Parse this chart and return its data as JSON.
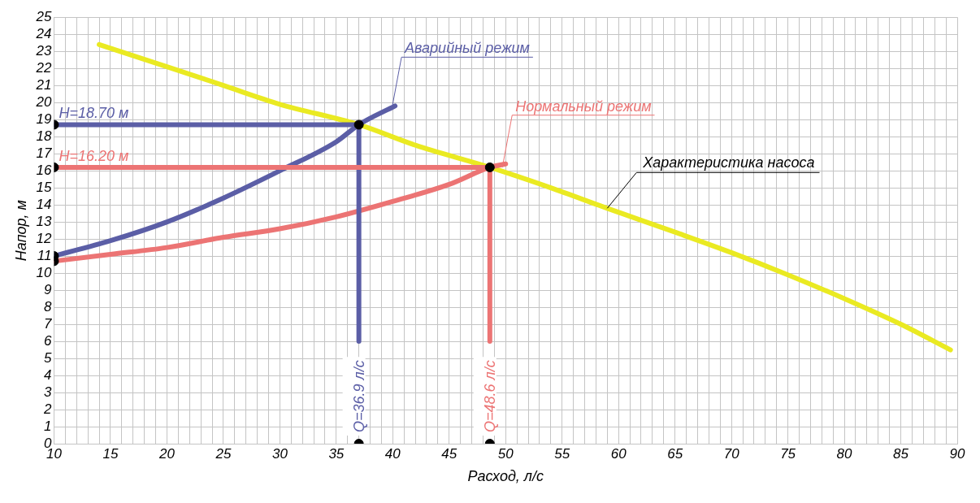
{
  "chart_data": {
    "type": "line",
    "xlabel": "Расход, л/с",
    "ylabel": "Напор, м",
    "xlim": [
      10,
      90
    ],
    "ylim": [
      0,
      25
    ],
    "xticks": [
      10,
      {
        "value": 11,
        "label": null
      },
      {
        "value": 12,
        "label": null
      },
      {
        "value": 13,
        "label": null
      },
      {
        "value": 14,
        "label": null
      },
      15,
      {
        "value": 16,
        "label": null
      },
      {
        "value": 17,
        "label": null
      },
      {
        "value": 18,
        "label": null
      },
      {
        "value": 19,
        "label": null
      },
      20,
      {
        "value": 21,
        "label": null
      },
      {
        "value": 22,
        "label": null
      },
      {
        "value": 23,
        "label": null
      },
      {
        "value": 24,
        "label": null
      },
      25,
      {
        "value": 26,
        "label": null
      },
      {
        "value": 27,
        "label": null
      },
      {
        "value": 28,
        "label": null
      },
      {
        "value": 29,
        "label": null
      },
      30,
      {
        "value": 31,
        "label": null
      },
      {
        "value": 32,
        "label": null
      },
      {
        "value": 33,
        "label": null
      },
      {
        "value": 34,
        "label": null
      },
      35,
      {
        "value": 36,
        "label": null
      },
      {
        "value": 37,
        "label": null
      },
      {
        "value": 38,
        "label": null
      },
      {
        "value": 39,
        "label": null
      },
      40,
      {
        "value": 41,
        "label": null
      },
      {
        "value": 42,
        "label": null
      },
      {
        "value": 43,
        "label": null
      },
      {
        "value": 44,
        "label": null
      },
      45,
      {
        "value": 46,
        "label": null
      },
      {
        "value": 47,
        "label": null
      },
      {
        "value": 48,
        "label": null
      },
      {
        "value": 49,
        "label": null
      },
      50,
      {
        "value": 51,
        "label": null
      },
      {
        "value": 52,
        "label": null
      },
      {
        "value": 53,
        "label": null
      },
      {
        "value": 54,
        "label": null
      },
      55,
      {
        "value": 56,
        "label": null
      },
      {
        "value": 57,
        "label": null
      },
      {
        "value": 58,
        "label": null
      },
      {
        "value": 59,
        "label": null
      },
      60,
      {
        "value": 61,
        "label": null
      },
      {
        "value": 62,
        "label": null
      },
      {
        "value": 63,
        "label": null
      },
      {
        "value": 64,
        "label": null
      },
      65,
      {
        "value": 66,
        "label": null
      },
      {
        "value": 67,
        "label": null
      },
      {
        "value": 68,
        "label": null
      },
      {
        "value": 69,
        "label": null
      },
      70,
      {
        "value": 71,
        "label": null
      },
      {
        "value": 72,
        "label": null
      },
      {
        "value": 73,
        "label": null
      },
      {
        "value": 74,
        "label": null
      },
      75,
      {
        "value": 76,
        "label": null
      },
      {
        "value": 77,
        "label": null
      },
      {
        "value": 78,
        "label": null
      },
      {
        "value": 79,
        "label": null
      },
      80,
      {
        "value": 81,
        "label": null
      },
      {
        "value": 82,
        "label": null
      },
      {
        "value": 83,
        "label": null
      },
      {
        "value": 84,
        "label": null
      },
      85,
      {
        "value": 86,
        "label": null
      },
      {
        "value": 87,
        "label": null
      },
      {
        "value": 88,
        "label": null
      },
      {
        "value": 89,
        "label": null
      },
      90
    ],
    "yticks": [
      0,
      1,
      2,
      3,
      4,
      5,
      6,
      7,
      8,
      9,
      10,
      11,
      12,
      13,
      14,
      15,
      16,
      17,
      18,
      19,
      20,
      21,
      22,
      23,
      24,
      25
    ],
    "grid": true,
    "legend": false,
    "line_style": "solid",
    "series": [
      {
        "type": "line",
        "color": "#eaea22",
        "x": [
          14,
          20,
          25,
          30,
          37,
          42,
          48.6,
          54,
          59,
          65,
          70,
          75,
          80,
          85,
          89.4
        ],
        "values": [
          23.4,
          22.1,
          21.0,
          19.9,
          18.7,
          17.5,
          16.2,
          15.0,
          13.8,
          12.4,
          11.2,
          9.9,
          8.5,
          7.0,
          5.5
        ]
      },
      {
        "type": "line",
        "name": "Аварийный режим",
        "color": "#5b5ea6",
        "x": [
          10,
          15,
          20,
          25,
          30,
          35,
          37,
          40.2
        ],
        "values": [
          11.0,
          11.9,
          13.0,
          14.4,
          16.0,
          17.7,
          18.7,
          19.8
        ]
      },
      {
        "type": "line",
        "name": "Нормальный режим",
        "color": "#ec7474",
        "x": [
          10,
          15,
          20,
          25,
          30,
          35,
          40,
          45,
          48.6,
          50
        ],
        "values": [
          10.7,
          11.1,
          11.5,
          12.1,
          12.6,
          13.3,
          14.2,
          15.2,
          16.2,
          16.4
        ]
      },
      {
        "type": "line",
        "color": "#5b5ea6",
        "x": [
          10,
          37,
          37
        ],
        "values": [
          18.7,
          18.7,
          6
        ]
      },
      {
        "type": "line",
        "color": "#ec7474",
        "x": [
          10,
          48.6,
          48.6
        ],
        "values": [
          16.2,
          16.2,
          6
        ]
      },
      {
        "type": "scatter",
        "color": "#000000",
        "marker": "circle",
        "x": [
          10,
          10,
          10,
          10,
          37,
          48.6,
          37,
          48.6
        ],
        "values": [
          18.7,
          16.2,
          11.0,
          10.7,
          0,
          0,
          18.7,
          16.2
        ]
      }
    ],
    "annotations": [
      {
        "text": "H=18.70 м",
        "x": 10,
        "y": 18.7
      },
      {
        "text": "H=16.20 м",
        "x": 10,
        "y": 16.2
      },
      {
        "text": "Q=36.9 л/с",
        "x": 37,
        "y": 0
      },
      {
        "text": "Q=48.6 л/с",
        "x": 48.6,
        "y": 0
      },
      {
        "text": "Характеристика насоса",
        "x": 59,
        "y": 13.8
      }
    ]
  }
}
